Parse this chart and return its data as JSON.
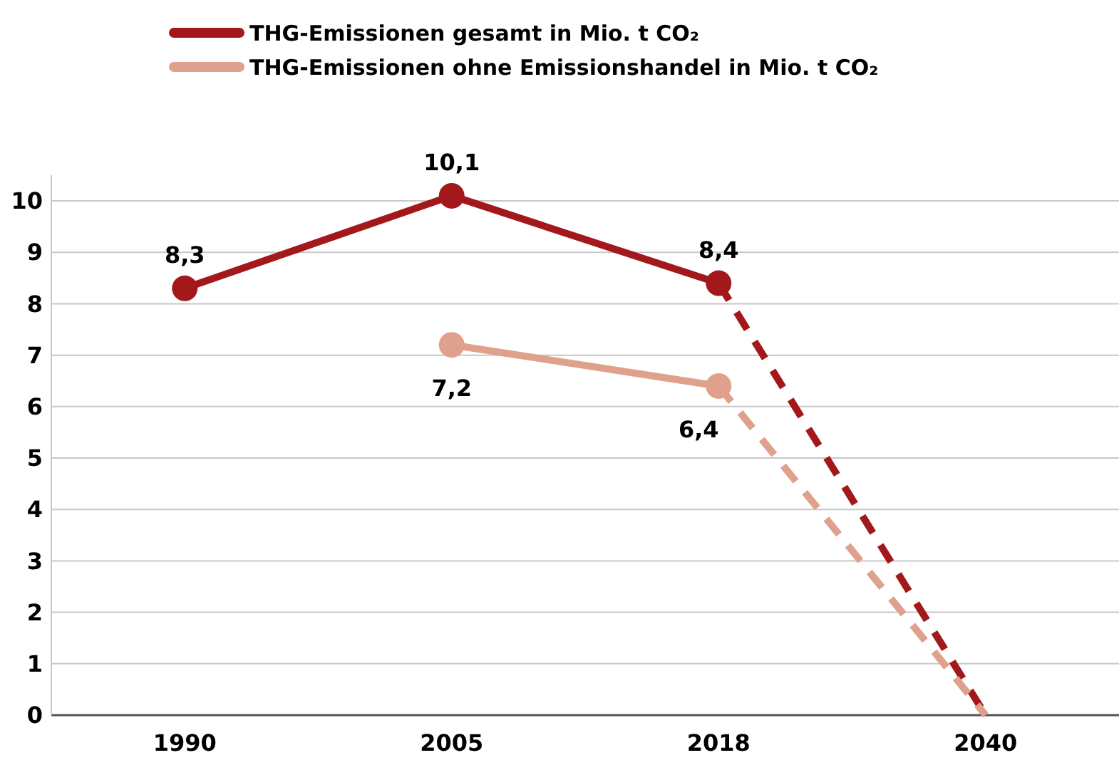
{
  "chart_data": {
    "type": "line",
    "categories": [
      "1990",
      "2005",
      "2018",
      "2040"
    ],
    "ylim": [
      0,
      10.5
    ],
    "yticks": [
      0,
      1,
      2,
      3,
      4,
      5,
      6,
      7,
      8,
      9,
      10
    ],
    "grid": "y",
    "legend": "top",
    "marker": "circle",
    "line_style": "solid",
    "series": [
      {
        "name": "THG-Emissionen gesamt in Mio. t CO₂",
        "color": "#a3181a",
        "values": [
          8.3,
          10.1,
          8.4,
          null
        ],
        "value_labels": [
          "8,3",
          "10,1",
          "8,4",
          null
        ]
      },
      {
        "name": "THG-Emissionen ohne Emissionshandel in Mio. t CO₂",
        "color": "#dfa08c",
        "values": [
          null,
          7.2,
          6.4,
          null
        ],
        "value_labels": [
          null,
          "7,2",
          "6,4",
          null
        ]
      },
      {
        "color": "#a3181a",
        "values": [
          null,
          null,
          8.4,
          0
        ],
        "line_style": "dashed",
        "marker": "none"
      },
      {
        "color": "#dfa08c",
        "values": [
          null,
          null,
          6.4,
          0
        ],
        "line_style": "dashed",
        "marker": "none"
      }
    ]
  }
}
